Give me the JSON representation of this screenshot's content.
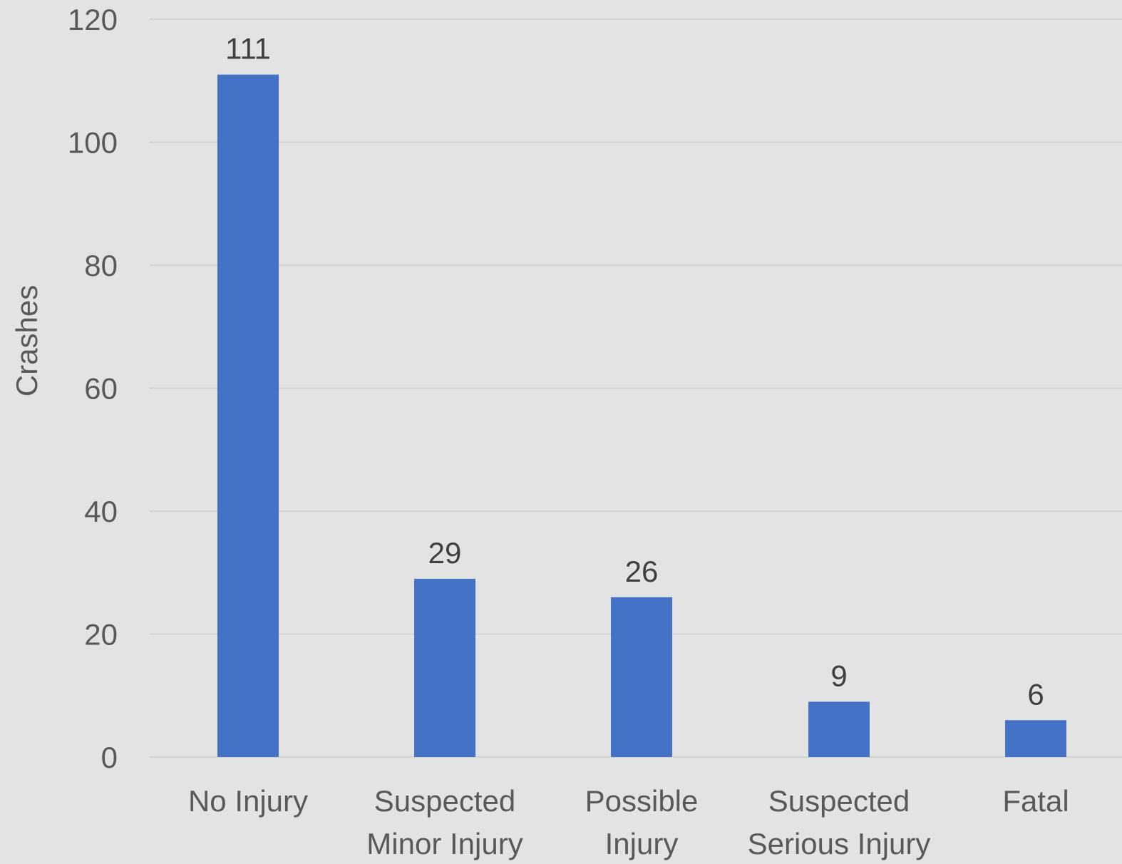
{
  "chart_data": {
    "type": "bar",
    "title": "",
    "xlabel": "",
    "ylabel": "Crashes",
    "categories": [
      [
        "No Injury"
      ],
      [
        "Suspected",
        "Minor Injury"
      ],
      [
        "Possible",
        "Injury"
      ],
      [
        "Suspected",
        "Serious Injury"
      ],
      [
        "Fatal"
      ]
    ],
    "values": [
      111,
      29,
      26,
      9,
      6
    ],
    "data_labels": [
      "111",
      "29",
      "26",
      "9",
      "6"
    ],
    "ylim": [
      0,
      120
    ],
    "yticks": [
      0,
      20,
      40,
      60,
      80,
      100,
      120
    ],
    "grid": true,
    "legend": "none",
    "bar_color": "#4472c4",
    "background_color": "#e3e3e3"
  }
}
